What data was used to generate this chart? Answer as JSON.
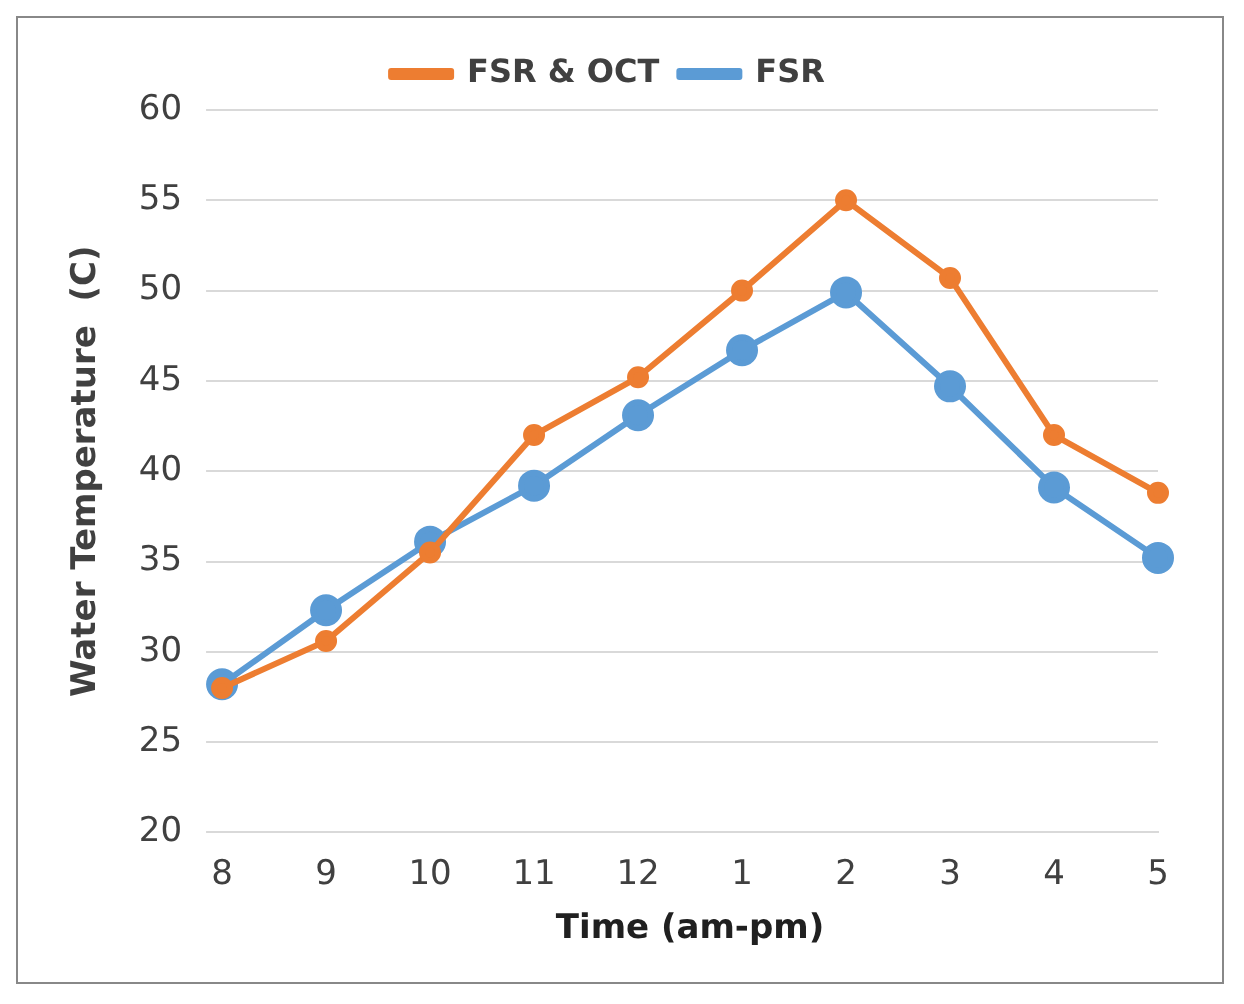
{
  "chart_data": {
    "type": "line",
    "xlabel": "Time (am-pm)",
    "ylabel": "Water Temperature  (C)",
    "categories": [
      "8",
      "9",
      "10",
      "11",
      "12",
      "1",
      "2",
      "3",
      "4",
      "5"
    ],
    "series": [
      {
        "name": "FSR & OCT",
        "color": "#ed7d31",
        "values": [
          28.0,
          30.6,
          35.5,
          42.0,
          45.2,
          50.0,
          55.0,
          50.7,
          42.0,
          38.8
        ]
      },
      {
        "name": "FSR",
        "color": "#5b9bd5",
        "values": [
          28.2,
          32.3,
          36.1,
          39.2,
          43.1,
          46.7,
          49.9,
          44.7,
          39.1,
          35.2
        ]
      }
    ],
    "ylim": [
      20,
      60
    ],
    "yticks": [
      20,
      25,
      30,
      35,
      40,
      45,
      50,
      55,
      60
    ],
    "grid": "y",
    "legend": "top",
    "marker": "circle",
    "line_style": "solid"
  }
}
